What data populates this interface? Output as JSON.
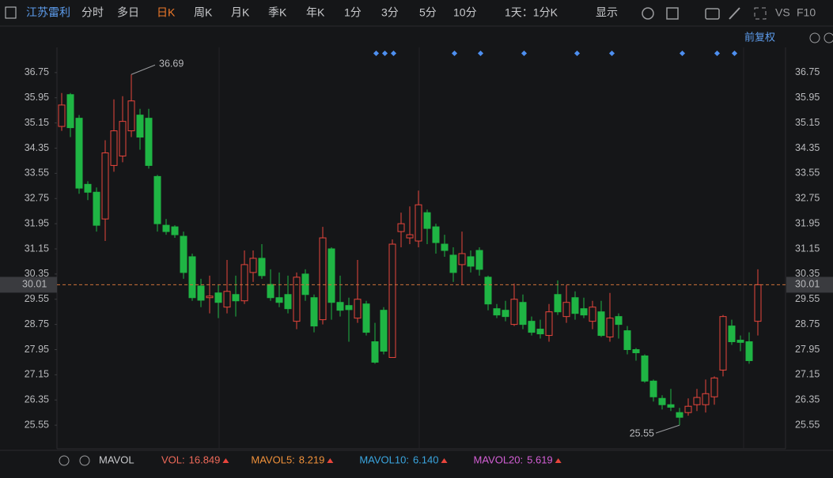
{
  "toolbar": {
    "stock": "江苏雷利",
    "tabs": [
      "分时",
      "多日",
      "日K",
      "周K",
      "月K",
      "季K",
      "年K",
      "1分",
      "3分",
      "5分",
      "10分"
    ],
    "active_tab": 2,
    "period": "1天：1分K",
    "display": "显示",
    "vs": "VS",
    "f10": "F10",
    "adjust": "前复权"
  },
  "chart_data": {
    "type": "candlestick",
    "open": [
      35.04,
      36.05,
      35.3,
      33.2,
      32.95,
      32.1,
      33.8,
      34.1,
      34.9,
      35.4,
      35.3,
      33.45,
      31.9,
      31.85,
      31.55,
      30.9,
      29.97,
      29.6,
      29.75,
      29.3,
      29.7,
      29.5,
      30.4,
      30.85,
      30.02,
      29.6,
      29.7,
      28.85,
      30.35,
      29.6,
      28.9,
      31.15,
      29.45,
      29.35,
      28.95,
      29.4,
      28.2,
      29.2,
      27.7,
      31.7,
      31.5,
      31.4,
      32.3,
      31.85,
      31.3,
      30.95,
      30.65,
      30.9,
      31.1,
      30.25,
      29.25,
      29.2,
      28.75,
      29.45,
      28.85,
      28.6,
      28.4,
      29.7,
      29.0,
      29.6,
      29.25,
      28.85,
      29.15,
      28.35,
      29.0,
      28.55,
      27.95,
      27.75,
      26.95,
      26.4,
      26.2,
      25.95,
      25.95,
      26.2,
      26.2,
      26.45,
      27.3,
      28.7,
      28.25,
      28.2,
      28.85
    ],
    "high": [
      36.1,
      36.1,
      35.4,
      33.3,
      33.1,
      34.6,
      35.9,
      36.0,
      36.69,
      35.6,
      35.6,
      33.5,
      32.1,
      31.9,
      31.7,
      31.0,
      30.2,
      30.3,
      30.0,
      30.8,
      30.3,
      31.1,
      31.1,
      31.3,
      30.5,
      30.4,
      30.3,
      30.4,
      30.5,
      29.7,
      31.85,
      31.2,
      30.3,
      29.6,
      30.8,
      29.5,
      28.8,
      29.3,
      31.45,
      32.3,
      32.5,
      33.0,
      32.4,
      31.95,
      31.6,
      31.2,
      31.7,
      31.1,
      31.2,
      30.3,
      29.4,
      29.5,
      30.05,
      29.7,
      29.0,
      28.9,
      29.4,
      30.15,
      30.0,
      29.8,
      29.6,
      29.5,
      29.5,
      29.75,
      29.1,
      28.7,
      28.0,
      27.8,
      27.0,
      26.5,
      26.7,
      26.1,
      26.4,
      26.7,
      27.0,
      27.1,
      29.05,
      28.9,
      28.4,
      28.5,
      30.5
    ],
    "low": [
      34.9,
      34.7,
      32.9,
      32.7,
      31.7,
      31.4,
      33.6,
      33.9,
      34.7,
      34.3,
      33.7,
      31.7,
      31.6,
      31.5,
      30.2,
      29.5,
      29.3,
      29.1,
      28.95,
      29.1,
      29.0,
      29.4,
      30.1,
      30.2,
      29.5,
      29.3,
      29.1,
      28.6,
      29.5,
      28.5,
      28.75,
      28.9,
      29.0,
      28.2,
      28.8,
      28.4,
      27.5,
      27.8,
      27.7,
      31.2,
      31.3,
      31.2,
      31.3,
      31.0,
      30.9,
      30.1,
      30.0,
      30.4,
      30.3,
      29.2,
      28.95,
      28.85,
      28.7,
      28.6,
      28.4,
      28.3,
      28.2,
      29.05,
      28.8,
      28.9,
      28.95,
      28.6,
      28.35,
      28.2,
      28.3,
      27.8,
      27.6,
      26.9,
      26.3,
      26.05,
      26.0,
      25.55,
      25.85,
      26.0,
      25.95,
      26.2,
      27.1,
      28.1,
      27.9,
      27.5,
      28.4
    ],
    "close": [
      35.72,
      35.0,
      33.08,
      32.95,
      31.9,
      34.2,
      34.9,
      35.2,
      35.85,
      34.7,
      33.8,
      31.95,
      31.7,
      31.6,
      30.4,
      29.6,
      29.52,
      29.65,
      29.45,
      29.8,
      29.5,
      30.65,
      30.85,
      30.3,
      29.6,
      29.45,
      29.25,
      30.25,
      29.7,
      28.7,
      31.5,
      29.45,
      29.2,
      29.22,
      29.55,
      28.5,
      27.55,
      27.9,
      31.3,
      31.95,
      31.6,
      32.55,
      31.8,
      31.35,
      31.1,
      30.4,
      31.0,
      30.6,
      30.5,
      29.4,
      29.05,
      29.0,
      29.55,
      28.75,
      28.5,
      28.45,
      29.15,
      29.15,
      29.45,
      29.1,
      29.05,
      29.3,
      28.4,
      28.95,
      28.75,
      27.95,
      27.85,
      26.95,
      26.45,
      26.2,
      26.12,
      25.8,
      26.15,
      26.43,
      26.55,
      27.05,
      29.0,
      28.2,
      28.18,
      27.6,
      30.01
    ],
    "up_color": "#e8453c",
    "down_color": "#1fb544",
    "ylim": [
      24.8,
      37.55
    ],
    "yticks": [
      25.55,
      26.35,
      27.15,
      27.95,
      28.75,
      29.55,
      30.35,
      31.15,
      31.95,
      32.75,
      33.55,
      34.35,
      35.15,
      35.95,
      36.75
    ],
    "last_price": 30.01,
    "last_price_color": "#d0713a",
    "high_label": "36.69",
    "low_label": "25.55"
  },
  "footer": {
    "indicator": "MAVOL",
    "items": [
      {
        "label": "VOL:",
        "value": "16.849",
        "color": "#f06a5a"
      },
      {
        "label": "MAVOL5:",
        "value": "8.219",
        "color": "#f0913a"
      },
      {
        "label": "MAVOL10:",
        "value": "6.140",
        "color": "#3aa6e0"
      },
      {
        "label": "MAVOL20:",
        "value": "5.619",
        "color": "#d45fd6"
      }
    ]
  }
}
